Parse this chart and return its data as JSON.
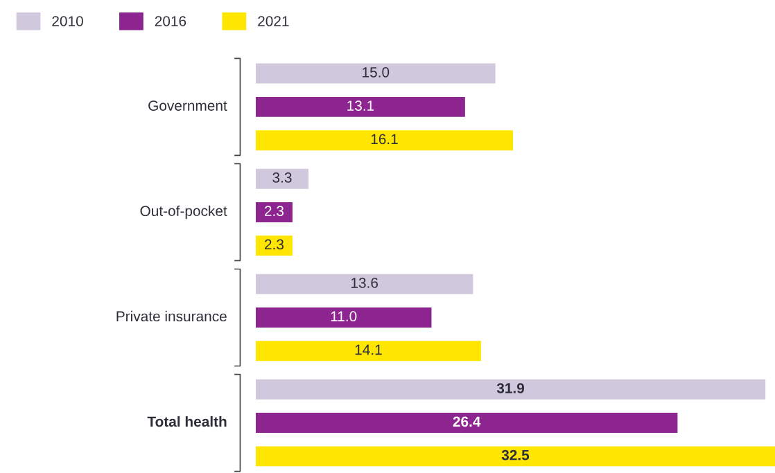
{
  "chart_data": {
    "type": "bar",
    "orientation": "horizontal",
    "categories": [
      "Government",
      "Out-of-pocket",
      "Private insurance",
      "Total health"
    ],
    "series": [
      {
        "name": "2010",
        "color": "#d0c8dd",
        "values": [
          15.0,
          3.3,
          13.6,
          31.9
        ],
        "value_labels": [
          "15.0",
          "3.3",
          "13.6",
          "31.9"
        ]
      },
      {
        "name": "2016",
        "color": "#8c258f",
        "values": [
          13.1,
          2.3,
          11.0,
          26.4
        ],
        "value_labels": [
          "13.1",
          "2.3",
          "11.0",
          "26.4"
        ]
      },
      {
        "name": "2021",
        "color": "#ffe600",
        "values": [
          16.1,
          2.3,
          14.1,
          32.5
        ],
        "value_labels": [
          "16.1",
          "2.3",
          "14.1",
          "32.5"
        ]
      }
    ],
    "legend": "top left"
  }
}
